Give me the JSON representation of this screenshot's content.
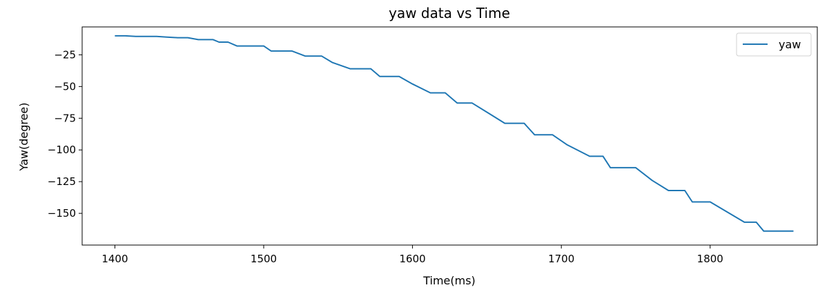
{
  "chart_data": {
    "type": "line",
    "title": "yaw data vs Time",
    "xlabel": "Time(ms)",
    "ylabel": "Yaw(degree)",
    "xlim": [
      1378,
      1872
    ],
    "ylim": [
      -175,
      -3
    ],
    "xticks": [
      1400,
      1500,
      1600,
      1700,
      1800
    ],
    "xtick_labels": [
      "1400",
      "1500",
      "1600",
      "1700",
      "1800"
    ],
    "yticks": [
      -25,
      -50,
      -75,
      -100,
      -125,
      -150
    ],
    "ytick_labels": [
      "−25",
      "−50",
      "−75",
      "−100",
      "−125",
      "−150"
    ],
    "grid": false,
    "legend": "top-right",
    "color": "#1f77b4",
    "series": [
      {
        "name": "yaw",
        "x": [
          1400,
          1407,
          1414,
          1428,
          1435,
          1442,
          1449,
          1456,
          1466,
          1470,
          1476,
          1482,
          1490,
          1500,
          1505,
          1510,
          1519,
          1528,
          1539,
          1546,
          1558,
          1572,
          1578,
          1591,
          1600,
          1612,
          1622,
          1630,
          1640,
          1651,
          1662,
          1675,
          1682,
          1694,
          1704,
          1719,
          1728,
          1733,
          1750,
          1761,
          1772,
          1783,
          1788,
          1800,
          1823,
          1831,
          1836,
          1856
        ],
        "y": [
          -10,
          -10,
          -10.5,
          -10.5,
          -11,
          -11.5,
          -11.5,
          -13,
          -13,
          -15,
          -15,
          -18,
          -18,
          -18,
          -22,
          -22,
          -22,
          -26,
          -26,
          -31,
          -36,
          -36,
          -42,
          -42,
          -48,
          -55,
          -55,
          -63,
          -63,
          -71,
          -79,
          -79,
          -88,
          -88,
          -96,
          -105,
          -105,
          -114,
          -114,
          -124,
          -132,
          -132,
          -141,
          -141,
          -157,
          -157,
          -164,
          -164
        ]
      }
    ]
  }
}
